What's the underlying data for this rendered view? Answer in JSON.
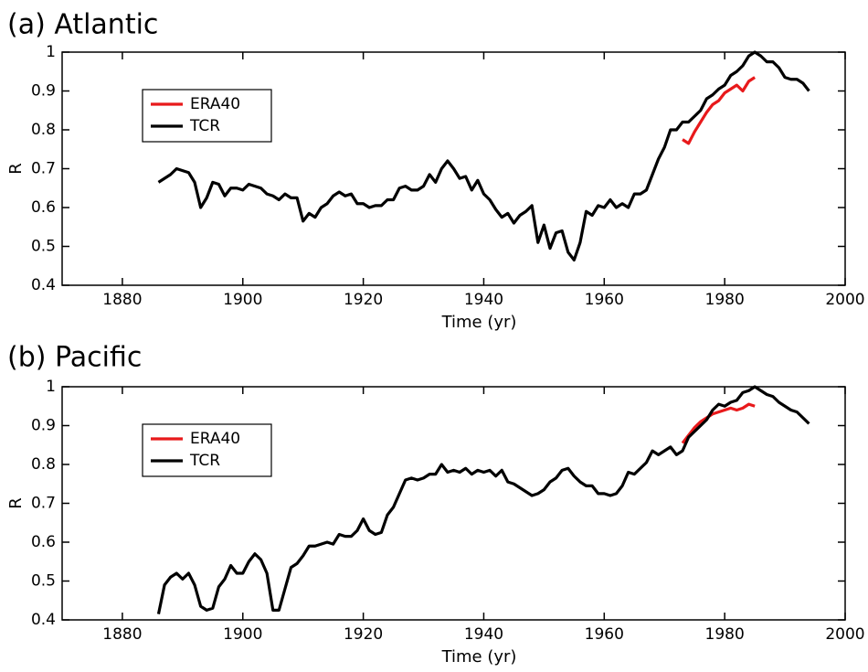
{
  "chart_data": [
    {
      "type": "line",
      "title": "(a) Atlantic",
      "xlabel": "Time (yr)",
      "ylabel": "R",
      "x": [
        1886,
        1887,
        1888,
        1889,
        1890,
        1891,
        1892,
        1893,
        1894,
        1895,
        1896,
        1897,
        1898,
        1899,
        1900,
        1901,
        1902,
        1903,
        1904,
        1905,
        1906,
        1907,
        1908,
        1909,
        1910,
        1911,
        1912,
        1913,
        1914,
        1915,
        1916,
        1917,
        1918,
        1919,
        1920,
        1921,
        1922,
        1923,
        1924,
        1925,
        1926,
        1927,
        1928,
        1929,
        1930,
        1931,
        1932,
        1933,
        1934,
        1935,
        1936,
        1937,
        1938,
        1939,
        1940,
        1941,
        1942,
        1943,
        1944,
        1945,
        1946,
        1947,
        1948,
        1949,
        1950,
        1951,
        1952,
        1953,
        1954,
        1955,
        1956,
        1957,
        1958,
        1959,
        1960,
        1961,
        1962,
        1963,
        1964,
        1965,
        1966,
        1967,
        1968,
        1969,
        1970,
        1971,
        1972,
        1973,
        1974,
        1975,
        1976,
        1977,
        1978,
        1979,
        1980,
        1981,
        1982,
        1983,
        1984,
        1985,
        1986,
        1987,
        1988,
        1989,
        1990,
        1991,
        1992,
        1993,
        1994
      ],
      "series": [
        {
          "name": "ERA40",
          "color": "#e8191b",
          "values": [
            null,
            null,
            null,
            null,
            null,
            null,
            null,
            null,
            null,
            null,
            null,
            null,
            null,
            null,
            null,
            null,
            null,
            null,
            null,
            null,
            null,
            null,
            null,
            null,
            null,
            null,
            null,
            null,
            null,
            null,
            null,
            null,
            null,
            null,
            null,
            null,
            null,
            null,
            null,
            null,
            null,
            null,
            null,
            null,
            null,
            null,
            null,
            null,
            null,
            null,
            null,
            null,
            null,
            null,
            null,
            null,
            null,
            null,
            null,
            null,
            null,
            null,
            null,
            null,
            null,
            null,
            null,
            null,
            null,
            null,
            null,
            null,
            null,
            null,
            null,
            null,
            null,
            null,
            null,
            null,
            null,
            null,
            null,
            null,
            null,
            null,
            null,
            0.775,
            0.765,
            0.795,
            0.82,
            0.845,
            0.865,
            0.875,
            0.895,
            0.905,
            0.915,
            0.9,
            0.925,
            0.935,
            null,
            null,
            null,
            null,
            null,
            null,
            null,
            null,
            null
          ]
        },
        {
          "name": "TCR",
          "color": "#000000",
          "values": [
            0.665,
            0.675,
            0.685,
            0.7,
            0.695,
            0.69,
            0.665,
            0.6,
            0.625,
            0.665,
            0.66,
            0.63,
            0.65,
            0.65,
            0.645,
            0.66,
            0.655,
            0.65,
            0.635,
            0.63,
            0.62,
            0.635,
            0.625,
            0.625,
            0.565,
            0.585,
            0.575,
            0.6,
            0.61,
            0.63,
            0.64,
            0.63,
            0.635,
            0.61,
            0.61,
            0.6,
            0.605,
            0.605,
            0.62,
            0.62,
            0.65,
            0.655,
            0.645,
            0.645,
            0.655,
            0.685,
            0.665,
            0.7,
            0.72,
            0.7,
            0.675,
            0.68,
            0.645,
            0.67,
            0.635,
            0.62,
            0.595,
            0.575,
            0.585,
            0.56,
            0.58,
            0.59,
            0.605,
            0.51,
            0.555,
            0.495,
            0.535,
            0.54,
            0.485,
            0.465,
            0.51,
            0.59,
            0.58,
            0.605,
            0.6,
            0.62,
            0.6,
            0.61,
            0.6,
            0.635,
            0.635,
            0.645,
            0.685,
            0.725,
            0.755,
            0.8,
            0.8,
            0.82,
            0.82,
            0.835,
            0.85,
            0.88,
            0.89,
            0.905,
            0.915,
            0.94,
            0.95,
            0.965,
            0.99,
            1,
            0.99,
            0.975,
            0.975,
            0.96,
            0.935,
            0.93,
            0.93,
            0.92,
            0.9
          ]
        }
      ],
      "xlim": [
        1870,
        2000
      ],
      "xticks": [
        1880,
        1900,
        1920,
        1940,
        1960,
        1980,
        2000
      ],
      "ylim": [
        0.4,
        1
      ],
      "yticks": [
        0.4,
        0.5,
        0.6,
        0.7,
        0.8,
        0.9,
        1
      ],
      "grid": false,
      "legend": "upper left"
    },
    {
      "type": "line",
      "title": "(b) Pacific",
      "xlabel": "Time (yr)",
      "ylabel": "R",
      "x": [
        1886,
        1887,
        1888,
        1889,
        1890,
        1891,
        1892,
        1893,
        1894,
        1895,
        1896,
        1897,
        1898,
        1899,
        1900,
        1901,
        1902,
        1903,
        1904,
        1905,
        1906,
        1907,
        1908,
        1909,
        1910,
        1911,
        1912,
        1913,
        1914,
        1915,
        1916,
        1917,
        1918,
        1919,
        1920,
        1921,
        1922,
        1923,
        1924,
        1925,
        1926,
        1927,
        1928,
        1929,
        1930,
        1931,
        1932,
        1933,
        1934,
        1935,
        1936,
        1937,
        1938,
        1939,
        1940,
        1941,
        1942,
        1943,
        1944,
        1945,
        1946,
        1947,
        1948,
        1949,
        1950,
        1951,
        1952,
        1953,
        1954,
        1955,
        1956,
        1957,
        1958,
        1959,
        1960,
        1961,
        1962,
        1963,
        1964,
        1965,
        1966,
        1967,
        1968,
        1969,
        1970,
        1971,
        1972,
        1973,
        1974,
        1975,
        1976,
        1977,
        1978,
        1979,
        1980,
        1981,
        1982,
        1983,
        1984,
        1985,
        1986,
        1987,
        1988,
        1989,
        1990,
        1991,
        1992,
        1993,
        1994
      ],
      "series": [
        {
          "name": "ERA40",
          "color": "#e8191b",
          "values": [
            null,
            null,
            null,
            null,
            null,
            null,
            null,
            null,
            null,
            null,
            null,
            null,
            null,
            null,
            null,
            null,
            null,
            null,
            null,
            null,
            null,
            null,
            null,
            null,
            null,
            null,
            null,
            null,
            null,
            null,
            null,
            null,
            null,
            null,
            null,
            null,
            null,
            null,
            null,
            null,
            null,
            null,
            null,
            null,
            null,
            null,
            null,
            null,
            null,
            null,
            null,
            null,
            null,
            null,
            null,
            null,
            null,
            null,
            null,
            null,
            null,
            null,
            null,
            null,
            null,
            null,
            null,
            null,
            null,
            null,
            null,
            null,
            null,
            null,
            null,
            null,
            null,
            null,
            null,
            null,
            null,
            null,
            null,
            null,
            null,
            null,
            null,
            0.855,
            0.875,
            0.895,
            0.91,
            0.92,
            0.93,
            0.935,
            0.94,
            0.945,
            0.94,
            0.945,
            0.955,
            0.95,
            null,
            null,
            null,
            null,
            null,
            null,
            null,
            null,
            null
          ]
        },
        {
          "name": "TCR",
          "color": "#000000",
          "values": [
            0.415,
            0.49,
            0.51,
            0.52,
            0.505,
            0.52,
            0.49,
            0.435,
            0.425,
            0.43,
            0.485,
            0.505,
            0.54,
            0.52,
            0.52,
            0.55,
            0.57,
            0.555,
            0.52,
            0.425,
            0.425,
            0.48,
            0.535,
            0.545,
            0.565,
            0.59,
            0.59,
            0.595,
            0.6,
            0.595,
            0.62,
            0.615,
            0.615,
            0.63,
            0.66,
            0.63,
            0.62,
            0.625,
            0.67,
            0.69,
            0.725,
            0.76,
            0.765,
            0.76,
            0.765,
            0.775,
            0.775,
            0.8,
            0.78,
            0.785,
            0.78,
            0.79,
            0.775,
            0.785,
            0.78,
            0.785,
            0.77,
            0.785,
            0.755,
            0.75,
            0.74,
            0.73,
            0.72,
            0.725,
            0.735,
            0.755,
            0.765,
            0.785,
            0.79,
            0.77,
            0.755,
            0.745,
            0.745,
            0.725,
            0.725,
            0.72,
            0.725,
            0.745,
            0.78,
            0.775,
            0.79,
            0.805,
            0.835,
            0.825,
            0.835,
            0.845,
            0.825,
            0.835,
            0.87,
            0.885,
            0.9,
            0.915,
            0.94,
            0.955,
            0.95,
            0.96,
            0.965,
            0.985,
            0.99,
            1,
            0.99,
            0.98,
            0.975,
            0.96,
            0.95,
            0.94,
            0.935,
            0.92,
            0.905
          ]
        }
      ],
      "xlim": [
        1870,
        2000
      ],
      "xticks": [
        1880,
        1900,
        1920,
        1940,
        1960,
        1980,
        2000
      ],
      "ylim": [
        0.4,
        1
      ],
      "yticks": [
        0.4,
        0.5,
        0.6,
        0.7,
        0.8,
        0.9,
        1
      ],
      "grid": false,
      "legend": "upper left"
    }
  ]
}
